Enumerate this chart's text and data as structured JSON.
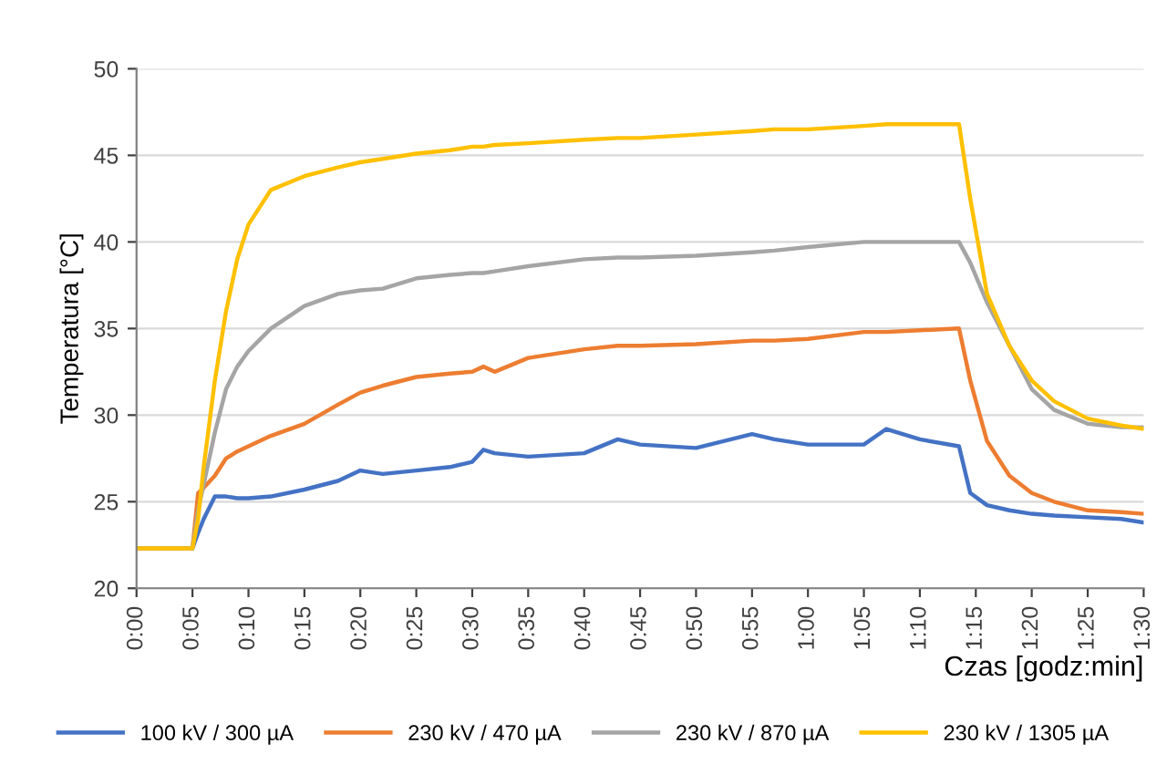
{
  "chart_data": {
    "type": "line",
    "ylabel": "Temperatura [°C]",
    "xlabel": "Czas [godz:min]",
    "x": [
      0,
      0.0833,
      0.0917,
      0.1,
      0.1167,
      0.1333,
      0.15,
      0.1667,
      0.2,
      0.25,
      0.3,
      0.3333,
      0.3667,
      0.4167,
      0.4667,
      0.5,
      0.5167,
      0.5333,
      0.5833,
      0.6667,
      0.7167,
      0.75,
      0.8333,
      0.9167,
      0.95,
      1,
      1.0833,
      1.1167,
      1.1667,
      1.225,
      1.2417,
      1.2667,
      1.3,
      1.3333,
      1.3667,
      1.4167,
      1.4667,
      1.5
    ],
    "series": [
      {
        "name": "100 kV / 300 µA",
        "color": "#4472c4",
        "values": [
          22.3,
          22.3,
          23.2,
          24,
          25.3,
          25.3,
          25.2,
          25.2,
          25.3,
          25.7,
          26.2,
          26.8,
          26.6,
          26.8,
          27,
          27.3,
          28,
          27.8,
          27.6,
          27.8,
          28.6,
          28.3,
          28.1,
          28.9,
          28.6,
          28.3,
          28.3,
          29.2,
          28.6,
          28.2,
          25.5,
          24.8,
          24.5,
          24.3,
          24.2,
          24.1,
          24,
          23.8
        ]
      },
      {
        "name": "230 kV / 470 µA",
        "color": "#ed7d31",
        "values": [
          22.3,
          22.3,
          25.5,
          25.8,
          26.5,
          27.5,
          27.9,
          28.2,
          28.8,
          29.5,
          30.6,
          31.3,
          31.7,
          32.2,
          32.4,
          32.5,
          32.8,
          32.5,
          33.3,
          33.8,
          34.0,
          34.0,
          34.1,
          34.3,
          34.3,
          34.4,
          34.8,
          34.8,
          34.9,
          35.0,
          32,
          28.5,
          26.5,
          25.5,
          25,
          24.5,
          24.4,
          24.3
        ]
      },
      {
        "name": "230 kV / 870 µA",
        "color": "#a5a5a5",
        "values": [
          22.3,
          22.3,
          24.5,
          26,
          29,
          31.5,
          32.8,
          33.7,
          35,
          36.3,
          37,
          37.2,
          37.3,
          37.9,
          38.1,
          38.2,
          38.2,
          38.3,
          38.6,
          39.0,
          39.1,
          39.1,
          39.2,
          39.4,
          39.5,
          39.7,
          40.0,
          40.0,
          40.0,
          40.0,
          38.8,
          36.5,
          34,
          31.5,
          30.3,
          29.5,
          29.3,
          29.3
        ]
      },
      {
        "name": "230 kV / 1305 µA",
        "color": "#ffc000",
        "values": [
          22.3,
          22.3,
          24,
          27,
          32,
          36,
          39,
          41,
          43,
          43.8,
          44.3,
          44.6,
          44.8,
          45.1,
          45.3,
          45.5,
          45.5,
          45.6,
          45.7,
          45.9,
          46.0,
          46.0,
          46.2,
          46.4,
          46.5,
          46.5,
          46.7,
          46.8,
          46.8,
          46.8,
          42.5,
          37,
          34,
          32,
          30.8,
          29.8,
          29.4,
          29.2
        ]
      }
    ],
    "xlim": [
      0,
      1.5
    ],
    "ylim": [
      20,
      50
    ],
    "xticks": [
      {
        "value": 0,
        "label": "0:00"
      },
      {
        "value": 0.0833,
        "label": "0:05"
      },
      {
        "value": 0.1667,
        "label": "0:10"
      },
      {
        "value": 0.25,
        "label": "0:15"
      },
      {
        "value": 0.3333,
        "label": "0:20"
      },
      {
        "value": 0.4167,
        "label": "0:25"
      },
      {
        "value": 0.5,
        "label": "0:30"
      },
      {
        "value": 0.5833,
        "label": "0:35"
      },
      {
        "value": 0.6667,
        "label": "0:40"
      },
      {
        "value": 0.75,
        "label": "0:45"
      },
      {
        "value": 0.8333,
        "label": "0:50"
      },
      {
        "value": 0.9167,
        "label": "0:55"
      },
      {
        "value": 1,
        "label": "1:00"
      },
      {
        "value": 1.0833,
        "label": "1:05"
      },
      {
        "value": 1.1667,
        "label": "1:10"
      },
      {
        "value": 1.25,
        "label": "1:15"
      },
      {
        "value": 1.3333,
        "label": "1:20"
      },
      {
        "value": 1.4167,
        "label": "1:25"
      },
      {
        "value": 1.5,
        "label": "1:30"
      }
    ],
    "yticks": [
      20,
      25,
      30,
      35,
      40,
      45,
      50
    ],
    "grid": "y",
    "legend": "bottom",
    "marker": "none",
    "line_style": "solid"
  }
}
